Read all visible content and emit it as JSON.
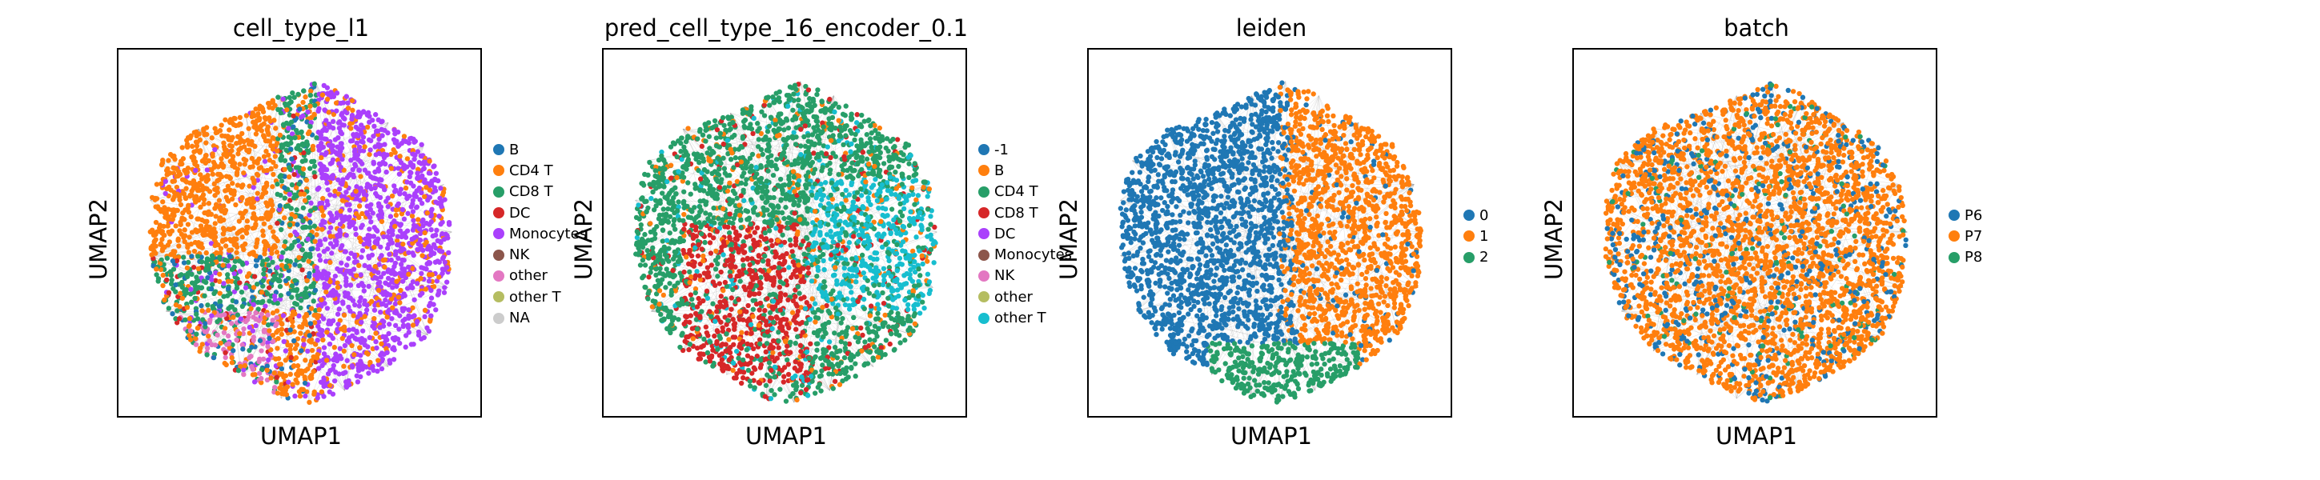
{
  "chart_data": [
    {
      "type": "scatter",
      "title": "cell_type_l1",
      "xlabel": "UMAP1",
      "ylabel": "UMAP2",
      "legend_position": "right",
      "categories": [
        "B",
        "CD4 T",
        "CD8 T",
        "DC",
        "Monocytes",
        "NK",
        "other",
        "other T",
        "NA"
      ],
      "colors": [
        "#1f77b4",
        "#ff7f0e",
        "#279e68",
        "#d62728",
        "#aa40fc",
        "#8c564b",
        "#e377c2",
        "#b5bd61",
        "#cccccc"
      ]
    },
    {
      "type": "scatter",
      "title": "pred_cell_type_16_encoder_0.1",
      "xlabel": "UMAP1",
      "ylabel": "UMAP2",
      "legend_position": "right",
      "categories": [
        "-1",
        "B",
        "CD4 T",
        "CD8 T",
        "DC",
        "Monocytes",
        "NK",
        "other",
        "other T"
      ],
      "colors": [
        "#1f77b4",
        "#ff7f0e",
        "#279e68",
        "#d62728",
        "#aa40fc",
        "#8c564b",
        "#e377c2",
        "#b5bd61",
        "#17becf"
      ]
    },
    {
      "type": "scatter",
      "title": "leiden",
      "xlabel": "UMAP1",
      "ylabel": "UMAP2",
      "legend_position": "right",
      "categories": [
        "0",
        "1",
        "2"
      ],
      "colors": [
        "#1f77b4",
        "#ff7f0e",
        "#279e68"
      ]
    },
    {
      "type": "scatter",
      "title": "batch",
      "xlabel": "UMAP1",
      "ylabel": "UMAP2",
      "legend_position": "right",
      "categories": [
        "P6",
        "P7",
        "P8"
      ],
      "colors": [
        "#1f77b4",
        "#ff7f0e",
        "#279e68"
      ]
    }
  ]
}
